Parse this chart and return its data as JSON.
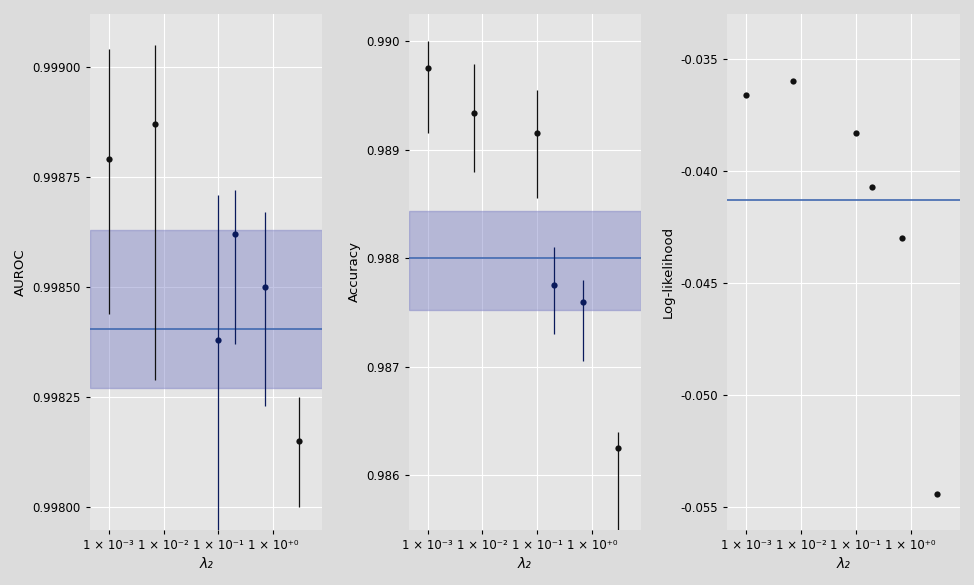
{
  "plot1": {
    "ylabel": "AUROC",
    "x_positions": [
      0.001,
      0.007,
      0.1,
      0.2,
      0.7,
      3.0
    ],
    "y_values": [
      0.99879,
      0.99887,
      0.99838,
      0.99862,
      0.9985,
      0.99815
    ],
    "y_err_low": [
      0.00035,
      0.00058,
      0.00045,
      0.00025,
      0.00027,
      0.00015
    ],
    "y_err_high": [
      0.00025,
      0.00018,
      0.00033,
      0.0001,
      0.00017,
      0.0001
    ],
    "blue_line": 0.998405,
    "band_low": 0.99827,
    "band_high": 0.99863,
    "dark_indices": [
      2,
      3,
      4
    ],
    "ylim": [
      0.99795,
      0.99912
    ],
    "yticks": [
      0.998,
      0.99825,
      0.9985,
      0.99875,
      0.999
    ]
  },
  "plot2": {
    "ylabel": "Accuracy",
    "x_positions": [
      0.001,
      0.007,
      0.1,
      0.2,
      0.7,
      3.0
    ],
    "y_values": [
      0.98975,
      0.98934,
      0.98915,
      0.98775,
      0.9876,
      0.98625
    ],
    "y_err_low": [
      0.0006,
      0.00055,
      0.0006,
      0.00045,
      0.00055,
      0.0011
    ],
    "y_err_high": [
      0.00025,
      0.00045,
      0.0004,
      0.00035,
      0.0002,
      0.00015
    ],
    "blue_line": 0.988,
    "band_low": 0.98752,
    "band_high": 0.98843,
    "dark_indices": [
      3,
      4
    ],
    "ylim": [
      0.9855,
      0.99025
    ],
    "yticks": [
      0.986,
      0.987,
      0.988,
      0.989,
      0.99
    ]
  },
  "plot3": {
    "ylabel": "Log-likelihood",
    "x_positions": [
      0.001,
      0.007,
      0.1,
      0.2,
      0.7,
      3.0
    ],
    "y_values": [
      -0.0366,
      -0.036,
      -0.0383,
      -0.0407,
      -0.043,
      -0.0544
    ],
    "blue_line": -0.0413,
    "ylim": [
      -0.056,
      -0.033
    ],
    "yticks": [
      -0.055,
      -0.05,
      -0.045,
      -0.04,
      -0.035
    ]
  },
  "x_tick_positions": [
    0.001,
    0.01,
    0.1,
    1.0
  ],
  "x_tick_labels": [
    "1 × 10⁻³",
    "1 × 10⁻²",
    "1 × 10⁻¹",
    "1 × 10⁺⁰"
  ],
  "xlabel": "λ₂",
  "bg_color": "#e5e5e5",
  "grid_color": "#ffffff",
  "band_color": "#7b7fc4",
  "band_alpha": 0.45,
  "line_color": "#4169b0",
  "dark_point_color": "#0a1a5c",
  "light_point_color": "#111111",
  "fig_bg": "#dcdcdc"
}
